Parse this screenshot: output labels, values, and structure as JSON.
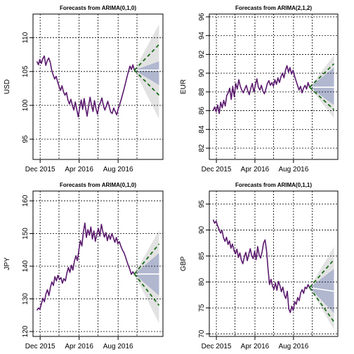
{
  "colors": {
    "series": "#5b1a6e",
    "forecast": "#1a6e1a",
    "band80": "#b0b7cf",
    "band95": "#e2e2e2",
    "grid": "#000000"
  },
  "chart_data": [
    {
      "type": "line",
      "title": "Forecasts from ARIMA(0,1,0)",
      "ylabel": "USD",
      "xlabel": "",
      "ylim": [
        92,
        113.5
      ],
      "yticks": [
        95,
        100,
        105,
        110
      ],
      "xticks": [
        "Dec 2015",
        "Apr 2016",
        "Aug 2016"
      ],
      "grid": true,
      "series": [
        {
          "values": [
            106.5,
            106.0,
            106.8,
            106.2,
            106.9,
            107.3,
            105.9,
            106.6,
            107.0,
            106.4,
            105.2,
            104.5,
            103.9,
            104.3,
            103.5,
            102.8,
            102.2,
            102.9,
            102.0,
            101.5,
            101.9,
            100.8,
            100.2,
            100.9,
            100.0,
            99.3,
            100.5,
            99.4,
            98.3,
            99.7,
            100.8,
            99.4,
            101.0,
            99.6,
            98.4,
            99.9,
            101.2,
            100.0,
            99.1,
            100.7,
            99.5,
            98.7,
            99.9,
            100.4,
            101.1,
            100.0,
            99.3,
            99.9,
            100.6,
            99.8,
            99.0,
            98.8,
            99.6,
            99.1,
            98.6,
            99.4,
            100.1,
            100.8,
            101.6,
            102.4,
            103.3,
            104.2,
            105.0,
            105.8,
            105.3,
            106.0,
            105.2
          ]
        }
      ],
      "forecast": {
        "start": 105.2,
        "center_end": 105.2,
        "lo80_end": 101.5,
        "hi80_end": 109.0,
        "lo95_end": 98.5,
        "hi95_end": 111.5,
        "band_lo80_end": 103.0,
        "band_hi80_end": 106.5,
        "band_lo95_end": 98.0,
        "band_hi95_end": 112.0
      }
    },
    {
      "type": "line",
      "title": "Forecasts from ARIMA(2,1,2)",
      "ylabel": "EUR",
      "xlabel": "",
      "ylim": [
        80.8,
        96.3
      ],
      "yticks": [
        82,
        84,
        86,
        88,
        90,
        92,
        94,
        96
      ],
      "xticks": [
        "Dec 2015",
        "Apr 2016",
        "Aug 2016"
      ],
      "grid": true,
      "series": [
        {
          "values": [
            86.0,
            86.4,
            85.9,
            86.6,
            85.7,
            86.9,
            86.3,
            87.1,
            86.5,
            87.6,
            87.9,
            88.4,
            87.2,
            88.6,
            87.5,
            88.9,
            88.3,
            89.3,
            88.6,
            88.2,
            87.9,
            88.3,
            88.7,
            88.1,
            87.7,
            88.4,
            88.9,
            88.0,
            88.7,
            89.4,
            88.5,
            88.2,
            88.7,
            88.1,
            87.8,
            88.3,
            88.9,
            89.2,
            88.7,
            89.0,
            88.6,
            89.3,
            88.8,
            89.5,
            89.0,
            89.6,
            90.0,
            89.5,
            90.3,
            90.8,
            90.1,
            90.6,
            89.9,
            90.3,
            89.7,
            89.2,
            88.7,
            88.2,
            88.6,
            87.9,
            88.4,
            88.7,
            88.3,
            89.0,
            88.5
          ]
        }
      ],
      "forecast": {
        "start": 88.5,
        "center_end": 88.5,
        "lo80_end": 86.1,
        "hi80_end": 91.0,
        "lo95_end": 85.3,
        "hi95_end": 91.8,
        "band_lo80_end": 86.6,
        "band_hi80_end": 90.6,
        "band_lo95_end": 85.2,
        "band_hi95_end": 91.9
      }
    },
    {
      "type": "line",
      "title": "Forecasts from ARIMA(0,1,0)",
      "ylabel": "JPY",
      "xlabel": "",
      "ylim": [
        118.5,
        163
      ],
      "yticks": [
        120,
        130,
        140,
        150,
        160
      ],
      "xticks": [
        "Dec 2015",
        "Apr 2016",
        "Aug 2016"
      ],
      "grid": true,
      "series": [
        {
          "values": [
            126.5,
            127.2,
            126.8,
            128.5,
            130.2,
            129.1,
            131.5,
            132.8,
            131.0,
            133.5,
            135.2,
            134.1,
            136.8,
            135.5,
            137.2,
            135.9,
            136.5,
            134.8,
            136.2,
            135.5,
            137.9,
            139.6,
            138.1,
            140.3,
            138.8,
            141.5,
            143.2,
            141.7,
            145.0,
            147.8,
            146.2,
            150.5,
            153.2,
            148.8,
            151.2,
            149.5,
            152.0,
            148.3,
            150.8,
            147.6,
            149.9,
            151.5,
            149.2,
            152.8,
            150.5,
            148.9,
            150.3,
            147.8,
            149.6,
            148.2,
            150.0,
            148.7,
            147.3,
            148.8,
            146.9,
            147.5,
            146.1,
            145.0,
            144.2,
            143.0,
            141.5,
            140.2,
            139.0,
            137.5,
            138.3,
            137.6
          ]
        }
      ],
      "forecast": {
        "start": 137.6,
        "center_end": 137.6,
        "lo80_end": 128.0,
        "hi80_end": 146.8,
        "lo95_end": 125.0,
        "hi95_end": 150.0,
        "band_lo80_end": 131.0,
        "band_hi80_end": 144.0,
        "band_lo95_end": 122.5,
        "band_hi95_end": 151.0
      }
    },
    {
      "type": "line",
      "title": "Forecasts from ARIMA(0,1,1)",
      "ylabel": "GBP",
      "xlabel": "",
      "ylim": [
        69.5,
        97.5
      ],
      "yticks": [
        70,
        75,
        80,
        85,
        90,
        95
      ],
      "xticks": [
        "Dec 2015",
        "Apr 2016",
        "Aug 2016"
      ],
      "grid": true,
      "series": [
        {
          "values": [
            92.0,
            91.3,
            91.7,
            90.8,
            90.1,
            89.4,
            89.9,
            88.5,
            87.8,
            88.6,
            87.2,
            87.9,
            86.5,
            87.3,
            86.1,
            85.4,
            86.3,
            84.7,
            85.6,
            84.2,
            83.5,
            84.8,
            85.7,
            84.1,
            85.3,
            86.4,
            85.0,
            84.5,
            85.9,
            84.3,
            86.8,
            85.2,
            84.6,
            85.8,
            87.5,
            88.1,
            86.0,
            82.5,
            79.5,
            80.5,
            79.2,
            78.6,
            79.8,
            78.4,
            80.1,
            79.3,
            78.1,
            79.0,
            77.5,
            76.8,
            78.2,
            74.8,
            74.1,
            75.3,
            74.5,
            76.2,
            75.7,
            77.0,
            76.4,
            77.9,
            78.5,
            77.8,
            79.0,
            78.7,
            79.5,
            78.9
          ]
        }
      ],
      "forecast": {
        "start": 78.9,
        "center_end": 78.2,
        "lo80_end": 72.3,
        "hi80_end": 84.3,
        "lo95_end": 71.0,
        "hi95_end": 85.6,
        "band_lo80_end": 74.0,
        "band_hi80_end": 82.5,
        "band_lo95_end": 70.8,
        "band_hi95_end": 86.8
      }
    }
  ]
}
